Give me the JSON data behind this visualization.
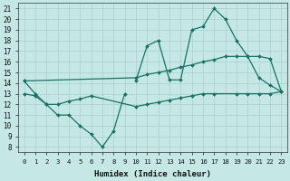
{
  "xlabel": "Humidex (Indice chaleur)",
  "bg_color": "#c5e8e5",
  "grid_color": "#a8d0cc",
  "line_color": "#1a7068",
  "xlim": [
    -0.5,
    23.5
  ],
  "ylim": [
    7.5,
    21.5
  ],
  "yticks": [
    8,
    9,
    10,
    11,
    12,
    13,
    14,
    15,
    16,
    17,
    18,
    19,
    20,
    21
  ],
  "xticks": [
    0,
    1,
    2,
    3,
    4,
    5,
    6,
    7,
    8,
    9,
    10,
    11,
    12,
    13,
    14,
    15,
    16,
    17,
    18,
    19,
    20,
    21,
    22,
    23
  ],
  "series": [
    {
      "x": [
        0,
        1,
        2,
        3,
        4,
        5,
        6,
        7,
        8,
        9
      ],
      "y": [
        14.2,
        13.0,
        12.0,
        11.0,
        11.0,
        10.0,
        9.2,
        8.0,
        9.5,
        13.0
      ]
    },
    {
      "x": [
        0,
        1,
        2,
        3,
        4,
        5,
        6,
        10,
        11,
        12,
        13,
        14,
        15,
        16,
        17,
        19,
        20,
        21,
        22,
        23
      ],
      "y": [
        13.0,
        12.8,
        12.0,
        12.0,
        12.3,
        12.5,
        12.8,
        11.8,
        12.0,
        12.2,
        12.4,
        12.6,
        12.8,
        13.0,
        13.0,
        13.0,
        13.0,
        13.0,
        13.0,
        13.2
      ]
    },
    {
      "x": [
        0,
        10,
        11,
        12,
        13,
        14,
        15,
        16,
        17,
        18,
        19,
        20,
        21,
        22,
        23
      ],
      "y": [
        14.2,
        14.5,
        14.8,
        15.0,
        15.2,
        15.5,
        15.7,
        16.0,
        16.2,
        16.5,
        16.5,
        16.5,
        16.5,
        16.3,
        13.2
      ]
    },
    {
      "x": [
        10,
        11,
        12,
        13,
        14,
        15,
        16,
        17,
        18,
        19,
        20,
        21,
        22,
        23
      ],
      "y": [
        14.2,
        17.5,
        18.0,
        14.3,
        14.3,
        19.0,
        19.3,
        21.0,
        20.0,
        18.0,
        16.5,
        14.5,
        13.8,
        13.2
      ]
    }
  ]
}
